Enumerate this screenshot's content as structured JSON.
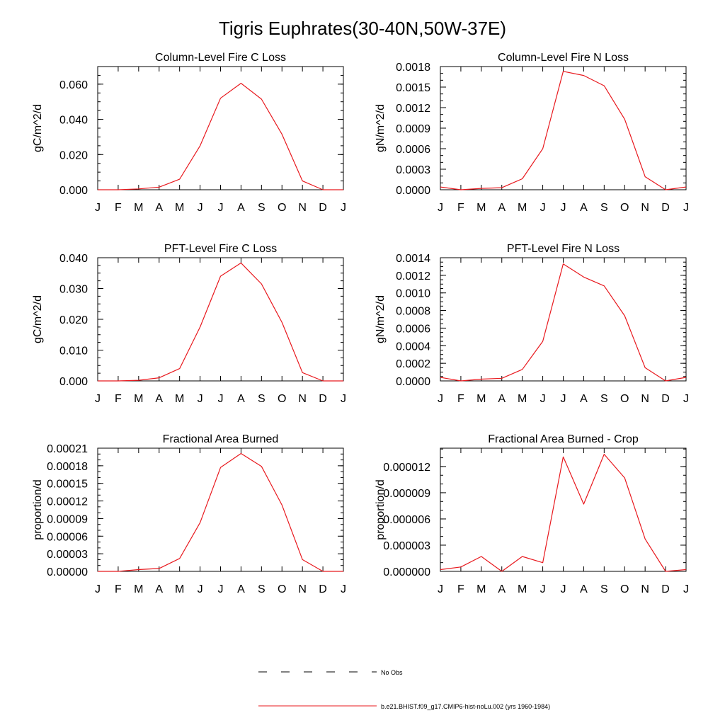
{
  "figure": {
    "title": "Tigris Euphrates(30-40N,50W-37E)",
    "legend": {
      "placement": "bottom-center",
      "entries": [
        {
          "label": "No Obs",
          "style": "dashed",
          "color": "#000000"
        },
        {
          "label": "b.e21.BHIST.f09_g17.CMIP6-hist-noLu.002 (yrs 1960-1984)",
          "style": "solid",
          "color": "#e8191e"
        }
      ]
    }
  },
  "chart_data": [
    {
      "type": "line",
      "title": "Column-Level Fire C Loss",
      "ylabel": "gC/m^2/d",
      "categories": [
        "J",
        "F",
        "M",
        "A",
        "M",
        "J",
        "J",
        "A",
        "S",
        "O",
        "N",
        "D",
        "J"
      ],
      "ylim": [
        0,
        0.07
      ],
      "yticks": [
        0,
        0.02,
        0.04,
        0.06
      ],
      "yticklabels": [
        "0.000",
        "0.020",
        "0.040",
        "0.060"
      ],
      "yminor": 0.005,
      "series": [
        {
          "color": "#e8191e",
          "values": [
            0.0,
            0.0,
            0.0005,
            0.0015,
            0.006,
            0.025,
            0.052,
            0.0605,
            0.0515,
            0.0315,
            0.005,
            0.0,
            0.0
          ]
        }
      ]
    },
    {
      "type": "line",
      "title": "Column-Level Fire N Loss",
      "ylabel": "gN/m^2/d",
      "categories": [
        "J",
        "F",
        "M",
        "A",
        "M",
        "J",
        "J",
        "A",
        "S",
        "O",
        "N",
        "D",
        "J"
      ],
      "ylim": [
        0,
        0.0018
      ],
      "yticks": [
        0,
        0.0003,
        0.0006,
        0.0009,
        0.0012,
        0.0015,
        0.0018
      ],
      "yticklabels": [
        "0.0000",
        "0.0003",
        "0.0006",
        "0.0009",
        "0.0012",
        "0.0015",
        "0.0018"
      ],
      "yminor": 0.0001,
      "series": [
        {
          "color": "#e8191e",
          "values": [
            4e-05,
            0.0,
            2e-05,
            3e-05,
            0.00016,
            0.0006,
            0.00173,
            0.00167,
            0.00152,
            0.00103,
            0.00019,
            0.0,
            4e-05
          ]
        }
      ]
    },
    {
      "type": "line",
      "title": "PFT-Level Fire C Loss",
      "ylabel": "gC/m^2/d",
      "categories": [
        "J",
        "F",
        "M",
        "A",
        "M",
        "J",
        "J",
        "A",
        "S",
        "O",
        "N",
        "D",
        "J"
      ],
      "ylim": [
        0,
        0.04
      ],
      "yticks": [
        0,
        0.01,
        0.02,
        0.03,
        0.04
      ],
      "yticklabels": [
        "0.000",
        "0.010",
        "0.020",
        "0.030",
        "0.040"
      ],
      "yminor": 0.0025,
      "series": [
        {
          "color": "#e8191e",
          "values": [
            0.0,
            0.0,
            0.0002,
            0.001,
            0.004,
            0.0175,
            0.034,
            0.0383,
            0.0315,
            0.019,
            0.0027,
            0.0,
            0.0
          ]
        }
      ]
    },
    {
      "type": "line",
      "title": "PFT-Level Fire N Loss",
      "ylabel": "gN/m^2/d",
      "categories": [
        "J",
        "F",
        "M",
        "A",
        "M",
        "J",
        "J",
        "A",
        "S",
        "O",
        "N",
        "D",
        "J"
      ],
      "ylim": [
        0,
        0.0014
      ],
      "yticks": [
        0,
        0.0002,
        0.0004,
        0.0006,
        0.0008,
        0.001,
        0.0012,
        0.0014
      ],
      "yticklabels": [
        "0.0000",
        "0.0002",
        "0.0004",
        "0.0006",
        "0.0008",
        "0.0010",
        "0.0012",
        "0.0014"
      ],
      "yminor": 5e-05,
      "series": [
        {
          "color": "#e8191e",
          "values": [
            4e-05,
            0.0,
            2e-05,
            3e-05,
            0.00013,
            0.00045,
            0.00133,
            0.00118,
            0.00108,
            0.00074,
            0.00015,
            0.0,
            4e-05
          ]
        }
      ]
    },
    {
      "type": "line",
      "title": "Fractional Area Burned",
      "ylabel": "proportion/d",
      "categories": [
        "J",
        "F",
        "M",
        "A",
        "M",
        "J",
        "J",
        "A",
        "S",
        "O",
        "N",
        "D",
        "J"
      ],
      "ylim": [
        0,
        0.00021
      ],
      "yticks": [
        0,
        3e-05,
        6e-05,
        9e-05,
        0.00012,
        0.00015,
        0.00018,
        0.00021
      ],
      "yticklabels": [
        "0.00000",
        "0.00003",
        "0.00006",
        "0.00009",
        "0.00012",
        "0.00015",
        "0.00018",
        "0.00021"
      ],
      "yminor": 1e-05,
      "series": [
        {
          "color": "#e8191e",
          "values": [
            0.0,
            0.0,
            3e-06,
            5e-06,
            2.2e-05,
            8.3e-05,
            0.000177,
            0.000201,
            0.000179,
            0.000113,
            2e-05,
            0.0,
            0.0
          ]
        }
      ]
    },
    {
      "type": "line",
      "title": "Fractional Area Burned - Crop",
      "ylabel": "proportion/d",
      "categories": [
        "J",
        "F",
        "M",
        "A",
        "M",
        "J",
        "J",
        "A",
        "S",
        "O",
        "N",
        "D",
        "J"
      ],
      "ylim": [
        0,
        1.41e-05
      ],
      "yticks": [
        0,
        3e-06,
        6e-06,
        9e-06,
        1.2e-05
      ],
      "yticklabels": [
        "0.000000",
        "0.000003",
        "0.000006",
        "0.000009",
        "0.000012"
      ],
      "yminor": 1e-06,
      "series": [
        {
          "color": "#e8191e",
          "values": [
            2e-07,
            5e-07,
            1.7e-06,
            0.0,
            1.7e-06,
            1e-06,
            1.31e-05,
            7.7e-06,
            1.34e-05,
            1.07e-05,
            3.7e-06,
            0.0,
            2e-07
          ]
        }
      ]
    }
  ]
}
